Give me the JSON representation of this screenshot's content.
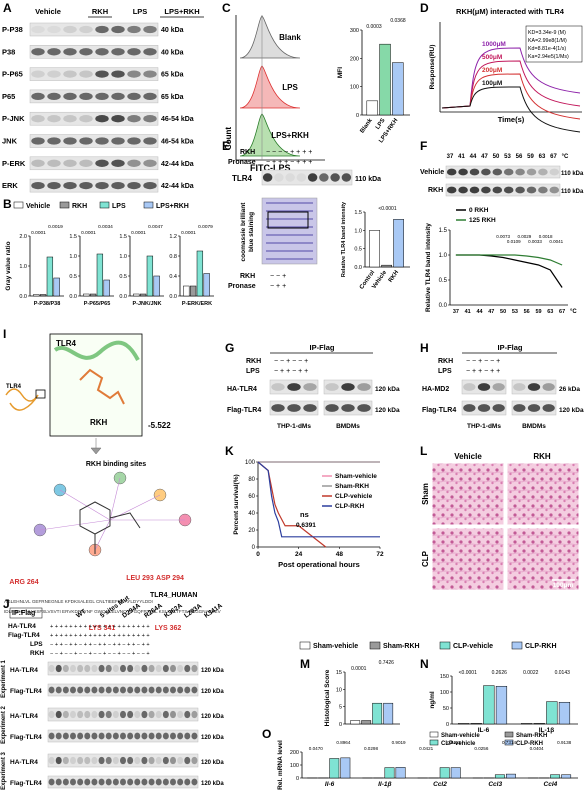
{
  "panels": {
    "A": {
      "label": "A",
      "columns": [
        "Vehicle",
        "RKH",
        "LPS",
        "LPS+RKH"
      ],
      "rows": [
        "P-P38",
        "P38",
        "P-P65",
        "P65",
        "P-JNK",
        "JNK",
        "P-ERK",
        "ERK"
      ],
      "sizes": [
        "40 kDa",
        "40 kDa",
        "65 kDa",
        "65 kDa",
        "46-54 kDa",
        "46-54 kDa",
        "42-44 kDa",
        "42-44 kDa"
      ]
    },
    "B": {
      "label": "B",
      "legend": [
        "Vehicle",
        "RKH",
        "LPS",
        "LPS+RKH"
      ]
    },
    "C": {
      "label": "C",
      "histogram": [
        "Blank",
        "LPS",
        "LPS+RKH"
      ],
      "ylabel": "Count",
      "xlabel": "FITC-LPS"
    },
    "D": {
      "label": "D",
      "title": "RKH(μM) interacted with TLR4",
      "ylabel": "Response(RU)",
      "xlabel": "Time(s)",
      "curves": [
        "1000μM",
        "500μM",
        "200μM",
        "100μM"
      ],
      "constants": [
        "KD=3.34e-9 (M)",
        "KA=2.99e8(1/M)",
        "Kd=8.81e-4(1/s)",
        "Ka=2.94e5(1/Ms)"
      ]
    },
    "E": {
      "label": "E",
      "rows": [
        "RKH",
        "Pronase"
      ],
      "rkh_signs": "−   −   −   −   +   +   +   +",
      "pronase_signs": "−   +   +   +   −   +   +   +",
      "band": "TLR4",
      "size": "110 kDa",
      "stain": [
        "coomassie brilliant",
        "blue staining"
      ],
      "lower_rkh": "−    −    +",
      "lower_pronase": "−    +    +"
    },
    "F": {
      "label": "F",
      "temps": [
        "37",
        "41",
        "44",
        "47",
        "50",
        "53",
        "56",
        "59",
        "63",
        "67",
        "°C"
      ],
      "rows": [
        "Vehicle",
        "RKH"
      ],
      "size": "110 kDa"
    },
    "G": {
      "label": "G",
      "title": "IP-Flag",
      "rows": [
        "RKH",
        "LPS"
      ],
      "rkh_signs": "−   −   +      −   −   +",
      "lps_signs": "−   +   +      −   +   +",
      "bands": [
        "HA-TLR4",
        "Flag-TLR4"
      ],
      "sizes": [
        "120 kDa",
        "120 kDa"
      ],
      "cells": [
        "THP-1-dMs",
        "BMDMs"
      ]
    },
    "H": {
      "label": "H",
      "title": "IP-Flag",
      "rows": [
        "RKH",
        "LPS"
      ],
      "rkh_signs": "−   −   +      −   −   +",
      "lps_signs": "−   +   +      −   +   +",
      "bands": [
        "HA-MD2",
        "Flag-TLR4"
      ],
      "sizes": [
        "26 kDa",
        "120 kDa"
      ],
      "cells": [
        "THP-1-dMs",
        "BMDMs"
      ]
    },
    "I": {
      "label": "I",
      "receptor": "TLR4",
      "ligand": "RKH",
      "score": "-5.522",
      "subtitle": "RKH binding sites",
      "residues": [
        "ARG 264",
        "LEU 293",
        "ASP 294",
        "LYS 341",
        "LYS 362"
      ],
      "sequence": [
        "AGLEHNLVL GEFRNEGNLE KFDKSALEGL CNLTIEEFRL AYLDYYLDDI",
        "IDLFNCLTNV SSFSLVSVTI ERVKDFSYNF GWQHLELVNC KFGQFPTLKL KSLKRLTFTS NKGGNAFSEV"
      ],
      "sequence_name": "TLR4_HUMAN"
    },
    "J": {
      "label": "J",
      "ip": "IP:Flag",
      "rows": [
        "HA-TLR4",
        "Flag-TLR4",
        "LPS",
        "RKH"
      ],
      "constructs": [
        "WT",
        "5 sites Mut",
        "D294A",
        "R264A",
        "K362A",
        "L293A",
        "K341A"
      ],
      "signs": [
        "+ + +  + + +  + + +  + + +  + + +  + + +  + + +",
        "+ + +  + + +  + + +  + + +  + + +  + + +  + + +",
        "− + +  − + +  − + +  − + +  − + +  − + +  − + +",
        "− − +  − − +  − − +  − − +  − − +  − − +  − − +"
      ],
      "bands": [
        "HA-TLR4",
        "Flag-TLR4"
      ],
      "size": "120 kDa",
      "experiments": [
        "Experiment 1",
        "Experiment 2",
        "Experiment 3"
      ]
    },
    "K": {
      "label": "K",
      "ns": "ns",
      "p": "0.6391"
    },
    "L": {
      "label": "L",
      "columns": [
        "Vehicle",
        "RKH"
      ],
      "rows": [
        "Sham",
        "CLP"
      ],
      "scale": "100μm"
    },
    "M": {
      "label": "M"
    },
    "N": {
      "label": "N"
    },
    "O": {
      "label": "O"
    }
  },
  "chart_data": [
    {
      "type": "bar",
      "ylabel": "Gray value ratio",
      "xlabel": "P-P38/P38",
      "values": [
        0.05,
        0.05,
        1.3,
        0.6
      ],
      "colors": [
        "#ffffff",
        "#9a9a9a",
        "#7fe3d3",
        "#a9c9f5"
      ],
      "ylim": [
        0,
        2
      ],
      "yticks": [
        {
          "value": 0,
          "label": "0.0"
        },
        {
          "value": 1,
          "label": "1.0"
        },
        {
          "value": 2,
          "label": "2.0"
        }
      ],
      "annotations": [
        "0.0001",
        "0.0019"
      ]
    },
    {
      "type": "bar",
      "xlabel": "P-P65/P65",
      "values": [
        0.05,
        0.05,
        1.05,
        0.4
      ],
      "colors": [
        "#ffffff",
        "#9a9a9a",
        "#7fe3d3",
        "#a9c9f5"
      ],
      "ylim": [
        0,
        1.5
      ],
      "yticks": [
        {
          "value": 0,
          "label": "0.0"
        },
        0.5,
        {
          "value": 1,
          "label": "1.0"
        },
        1.5
      ],
      "annotations": [
        "0.0001",
        "0.0034"
      ]
    },
    {
      "type": "bar",
      "xlabel": "P-JNK/JNK",
      "values": [
        0.05,
        0.05,
        1.0,
        0.5
      ],
      "colors": [
        "#ffffff",
        "#9a9a9a",
        "#7fe3d3",
        "#a9c9f5"
      ],
      "ylim": [
        0,
        1.5
      ],
      "yticks": [
        {
          "value": 0,
          "label": "0.0"
        },
        0.5,
        {
          "value": 1,
          "label": "1.0"
        },
        1.5
      ],
      "annotations": [
        "0.0001",
        "0.0047"
      ]
    },
    {
      "type": "bar",
      "xlabel": "P-ERK/ERK",
      "values": [
        0.2,
        0.2,
        0.9,
        0.45
      ],
      "colors": [
        "#ffffff",
        "#9a9a9a",
        "#7fe3d3",
        "#a9c9f5"
      ],
      "ylim": [
        0,
        1.2
      ],
      "yticks": [
        {
          "value": 0,
          "label": "0.0"
        },
        0.4,
        0.8,
        1.2
      ],
      "annotations": [
        "0.0001",
        "0.0079"
      ]
    },
    {
      "type": "bar",
      "ylabel": "MFI",
      "categories": [
        "Blank",
        "LPS",
        "LPS+RKH"
      ],
      "values": [
        50,
        250,
        185
      ],
      "colors": [
        "#ffffff",
        "#86d9a8",
        "#a9c9f5"
      ],
      "ylim": [
        0,
        300
      ],
      "yticks": [
        0,
        100,
        200,
        300
      ],
      "annotations": [
        "0.0003",
        "0.0368"
      ]
    },
    {
      "type": "bar",
      "ylabel": "Relative TLR4 band intensity",
      "categories": [
        "Control",
        "Vehicle",
        "RKH"
      ],
      "values": [
        1.0,
        0.05,
        1.3
      ],
      "colors": [
        "#ffffff",
        "#9a9a9a",
        "#a9c9f5"
      ],
      "ylim": [
        0,
        1.5
      ],
      "yticks": [
        {
          "value": 0,
          "label": "0.0"
        },
        0.5,
        {
          "value": 1,
          "label": "1.0"
        },
        1.5
      ],
      "annotations": [
        "<0.0001"
      ]
    },
    {
      "type": "line",
      "ylabel": "Relative TLR4 band intensity",
      "xlabel": "°C",
      "categories": [
        "37",
        "41",
        "44",
        "47",
        "50",
        "53",
        "56",
        "59",
        "63",
        "67"
      ],
      "ylim": [
        0,
        1.5
      ],
      "yticks": [
        {
          "value": 0,
          "label": "0.0"
        },
        0.5,
        {
          "value": 1,
          "label": "1.0"
        },
        1.5
      ],
      "series": [
        {
          "name": "0 RKH",
          "color": "#000000",
          "values": [
            1,
            1,
            1,
            0.98,
            0.95,
            0.9,
            0.85,
            0.8,
            0.7,
            0.35
          ]
        },
        {
          "name": "125 RKH",
          "color": "#2e7d32",
          "values": [
            1,
            1,
            1,
            1,
            1,
            1,
            0.98,
            0.95,
            0.9,
            0.8
          ]
        }
      ],
      "annotations": [
        "0.0073",
        "0.0109",
        "0.0029",
        "0.0033",
        "0.0018",
        "0.0041"
      ]
    },
    {
      "type": "line",
      "ylabel": "Percent survival(%)",
      "xlabel": "Post operational hours",
      "xlim": [
        0,
        72
      ],
      "xticks": [
        0,
        24,
        48,
        72
      ],
      "ylim": [
        0,
        100
      ],
      "yticks": [
        0,
        20,
        40,
        60,
        80,
        100
      ],
      "series": [
        {
          "name": "Sham-vehicle",
          "color": "#f08fb0",
          "x": [
            0,
            72
          ],
          "values": [
            100,
            100
          ]
        },
        {
          "name": "Sham-RKH",
          "color": "#999999",
          "x": [
            0,
            72
          ],
          "values": [
            100,
            100
          ]
        },
        {
          "name": "CLP-vehicle",
          "color": "#c0392b",
          "x": [
            0,
            6,
            8,
            10,
            12,
            16,
            24,
            40
          ],
          "values": [
            100,
            90,
            70,
            50,
            40,
            25,
            25,
            0
          ]
        },
        {
          "name": "CLP-RKH",
          "color": "#2c3e9e",
          "x": [
            0,
            6,
            8,
            10,
            12,
            14,
            72
          ],
          "values": [
            100,
            90,
            60,
            40,
            30,
            12,
            12
          ]
        }
      ]
    },
    {
      "type": "bar",
      "ylabel": "Histological Score",
      "values": [
        1,
        1,
        6,
        6
      ],
      "colors": [
        "#ffffff",
        "#9a9a9a",
        "#7fe3d3",
        "#a9c9f5"
      ],
      "ylim": [
        0,
        15
      ],
      "yticks": [
        0,
        5,
        10,
        15
      ],
      "annotations": [
        "0.0001",
        "0.7426"
      ]
    },
    {
      "type": "bar",
      "ylabel": "ng/ml",
      "categories": [
        "IL-6",
        "IL-1β"
      ],
      "ylim": [
        0,
        150
      ],
      "yticks": [
        0,
        50,
        100,
        150
      ],
      "series": [
        {
          "name": "Sham-vehicle",
          "color": "#ffffff",
          "values": [
            2,
            2
          ]
        },
        {
          "name": "Sham-RKH",
          "color": "#9a9a9a",
          "values": [
            2,
            2
          ]
        },
        {
          "name": "CLP-vehicle",
          "color": "#7fe3d3",
          "values": [
            120,
            70
          ]
        },
        {
          "name": "CLP-RKH",
          "color": "#a9c9f5",
          "values": [
            118,
            68
          ]
        }
      ],
      "annotations": [
        "<0.0001",
        "0.2626",
        "0.0022",
        "0.0143"
      ]
    },
    {
      "type": "bar",
      "ylabel": "Rel. mRNA level",
      "categories": [
        "Il-6",
        "Il-1β",
        "Ccl2",
        "Ccl3",
        "Ccl4"
      ],
      "ylim": [
        0,
        200
      ],
      "yticks": [
        0,
        100,
        200
      ],
      "series": [
        {
          "name": "Sham-vehicle",
          "color": "#ffffff",
          "values": [
            1,
            1,
            1,
            1,
            1
          ]
        },
        {
          "name": "Sham-RKH",
          "color": "#9a9a9a",
          "values": [
            1,
            1,
            1,
            1,
            1
          ]
        },
        {
          "name": "CLP-vehicle",
          "color": "#7fe3d3",
          "values": [
            150,
            80,
            80,
            25,
            25
          ]
        },
        {
          "name": "CLP-RKH",
          "color": "#a9c9f5",
          "values": [
            155,
            82,
            80,
            30,
            25
          ]
        }
      ],
      "annotations": [
        "0.0470",
        "0.8964",
        "0.0298",
        "0.9019",
        "0.0421",
        "0.8112",
        "0.0256",
        "0.7314",
        "0.0404",
        "0.9138"
      ]
    }
  ]
}
